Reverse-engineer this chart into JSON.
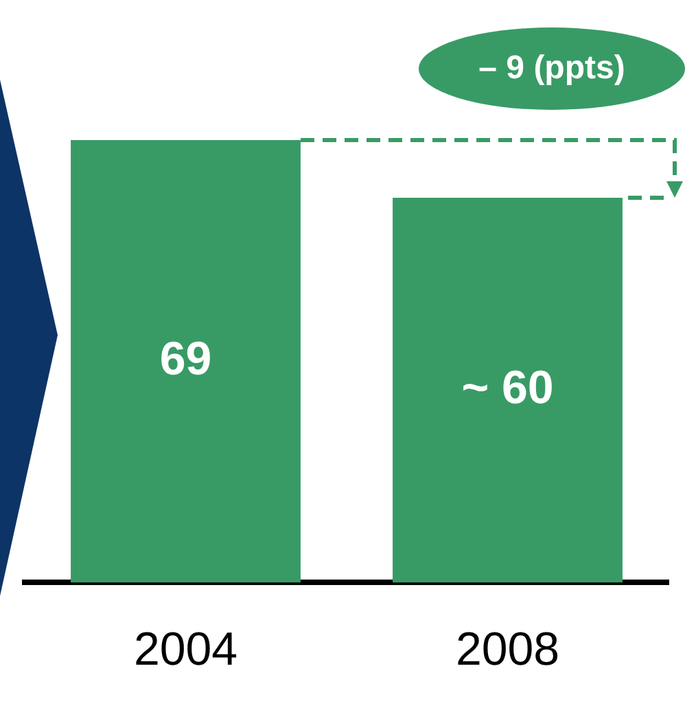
{
  "chart_data": {
    "type": "bar",
    "categories": [
      "2004",
      "2008"
    ],
    "values": [
      69,
      60
    ],
    "color": "#389b65",
    "value_labels": [
      "69",
      "~ 60"
    ],
    "annotations": [
      "– 9 (ppts)"
    ],
    "grid": false,
    "legend": false
  }
}
